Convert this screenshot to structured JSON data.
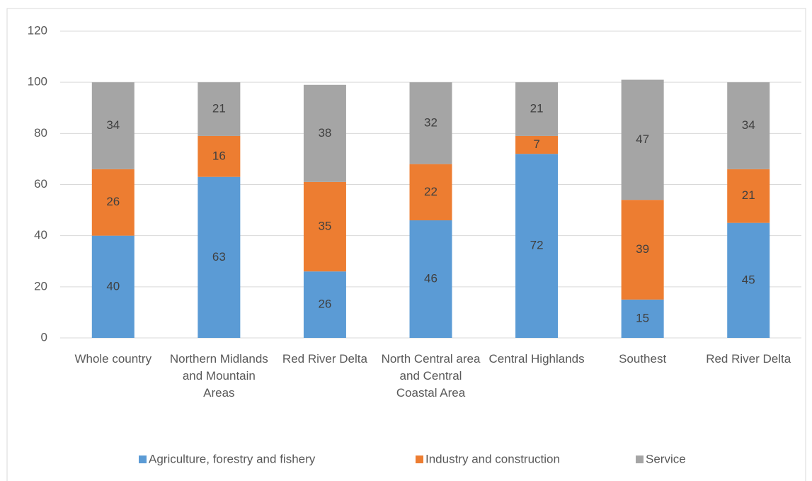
{
  "chart_data": {
    "type": "stacked_bar",
    "categories": [
      "Whole country",
      "Northern Midlands and Mountain Areas",
      "Red River Delta",
      "North Central area and Central Coastal Area",
      "Central Highlands",
      "Southest",
      "Red River Delta"
    ],
    "series": [
      {
        "name": "Agriculture, forestry and fishery",
        "color": "#5b9bd5",
        "values": [
          40,
          63,
          26,
          46,
          72,
          15,
          45
        ]
      },
      {
        "name": "Industry and construction",
        "color": "#ed7d31",
        "values": [
          26,
          16,
          35,
          22,
          7,
          39,
          21
        ]
      },
      {
        "name": "Service",
        "color": "#a5a5a5",
        "values": [
          34,
          21,
          38,
          32,
          21,
          47,
          34
        ]
      }
    ],
    "ylim": [
      0,
      120
    ],
    "yticks": [
      0,
      20,
      40,
      60,
      80,
      100,
      120
    ],
    "grid": true,
    "legend": "bottom"
  }
}
